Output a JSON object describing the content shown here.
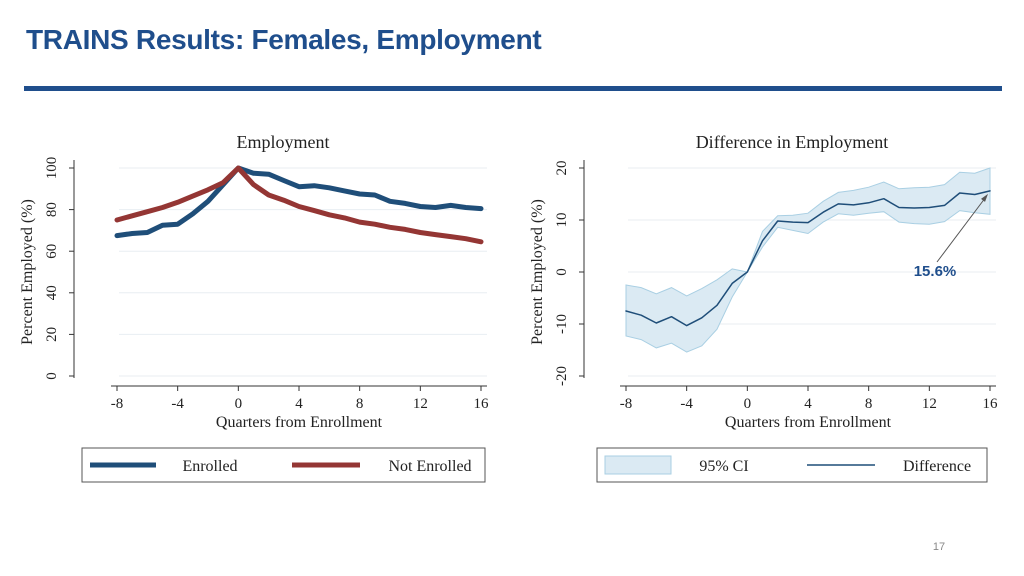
{
  "slide": {
    "title": "TRAINS Results: Females, Employment",
    "page_number": "17"
  },
  "colors": {
    "title": "#1f4e8c",
    "enrolled": "#1f4e79",
    "not_enrolled": "#943634",
    "difference": "#1f4e79",
    "ci_fill": "#dbeaf3",
    "ci_stroke": "#a9cfe3",
    "annotation": "#1f4e8c"
  },
  "chart_data": [
    {
      "type": "line",
      "title": "Employment",
      "xlabel": "Quarters from Enrollment",
      "ylabel": "Percent Employed (%)",
      "xlim": [
        -8,
        16
      ],
      "ylim": [
        0,
        100
      ],
      "xticks": [
        -8,
        -4,
        0,
        4,
        8,
        12,
        16
      ],
      "xtick_labels": [
        "-8",
        "-4",
        "0",
        "4",
        "8",
        "12",
        "16"
      ],
      "yticks": [
        0,
        20,
        40,
        60,
        80,
        100
      ],
      "ytick_labels": [
        "0",
        "20",
        "40",
        "60",
        "80",
        "100"
      ],
      "grid": true,
      "x": [
        -8,
        -7,
        -6,
        -5,
        -4,
        -3,
        -2,
        -1,
        0,
        1,
        2,
        3,
        4,
        5,
        6,
        7,
        8,
        9,
        10,
        11,
        12,
        13,
        14,
        15,
        16
      ],
      "series": [
        {
          "name": "Enrolled",
          "values": [
            67.5,
            68.5,
            69,
            72.5,
            73,
            78,
            84,
            92,
            100,
            97.5,
            97,
            94,
            91,
            91.5,
            90.5,
            89,
            87.5,
            87,
            84,
            83,
            81.5,
            81,
            82,
            81,
            80.5
          ]
        },
        {
          "name": "Not Enrolled",
          "values": [
            75,
            77,
            79,
            81,
            83.5,
            86.5,
            89.5,
            93,
            100,
            92,
            87,
            84.5,
            81.5,
            79.5,
            77.5,
            76,
            74,
            73,
            71.5,
            70.5,
            69,
            68,
            67,
            66,
            64.5
          ]
        }
      ],
      "legend": {
        "position": "bottom",
        "items": [
          "Enrolled",
          "Not Enrolled"
        ]
      }
    },
    {
      "type": "line",
      "title": "Difference in Employment",
      "xlabel": "Quarters from Enrollment",
      "ylabel": "Percent Employed (%)",
      "xlim": [
        -8,
        16
      ],
      "ylim": [
        -20,
        20
      ],
      "xticks": [
        -8,
        -4,
        0,
        4,
        8,
        12,
        16
      ],
      "xtick_labels": [
        "-8",
        "-4",
        "0",
        "4",
        "8",
        "12",
        "16"
      ],
      "yticks": [
        -20,
        -10,
        0,
        10,
        20
      ],
      "ytick_labels": [
        "-20",
        "-10",
        "0",
        "10",
        "20"
      ],
      "grid": true,
      "x": [
        -8,
        -7,
        -6,
        -5,
        -4,
        -3,
        -2,
        -1,
        0,
        1,
        2,
        3,
        4,
        5,
        6,
        7,
        8,
        9,
        10,
        11,
        12,
        13,
        14,
        15,
        16
      ],
      "series": [
        {
          "name": "Difference",
          "values": [
            -7.5,
            -8.3,
            -9.8,
            -8.6,
            -10.3,
            -8.8,
            -6.4,
            -2.2,
            0,
            6,
            9.8,
            9.6,
            9.5,
            11.5,
            13.1,
            12.9,
            13.3,
            14.1,
            12.4,
            12.3,
            12.4,
            12.8,
            15.2,
            14.9,
            15.6
          ]
        }
      ],
      "ci": {
        "name": "95% CI",
        "upper": [
          -2.5,
          -3,
          -4.2,
          -3,
          -4.6,
          -3.2,
          -1.5,
          0.6,
          0,
          7.8,
          10.8,
          10.9,
          11.3,
          13.6,
          15.3,
          15.7,
          16.3,
          17.3,
          16,
          16.2,
          16.3,
          16.8,
          19.2,
          19,
          20
        ],
        "lower": [
          -12.3,
          -13,
          -14.6,
          -13.7,
          -15.4,
          -14.2,
          -11,
          -4.8,
          0,
          4.8,
          8.6,
          8,
          7.4,
          9.6,
          11.2,
          10.9,
          11.3,
          11.6,
          9.6,
          9.3,
          9.2,
          9.7,
          11.8,
          11.4,
          11.1
        ]
      },
      "annotation": {
        "text": "15.6%",
        "x": 16,
        "y": 15.6
      },
      "legend": {
        "position": "bottom",
        "items": [
          "95% CI",
          "Difference"
        ]
      }
    }
  ]
}
